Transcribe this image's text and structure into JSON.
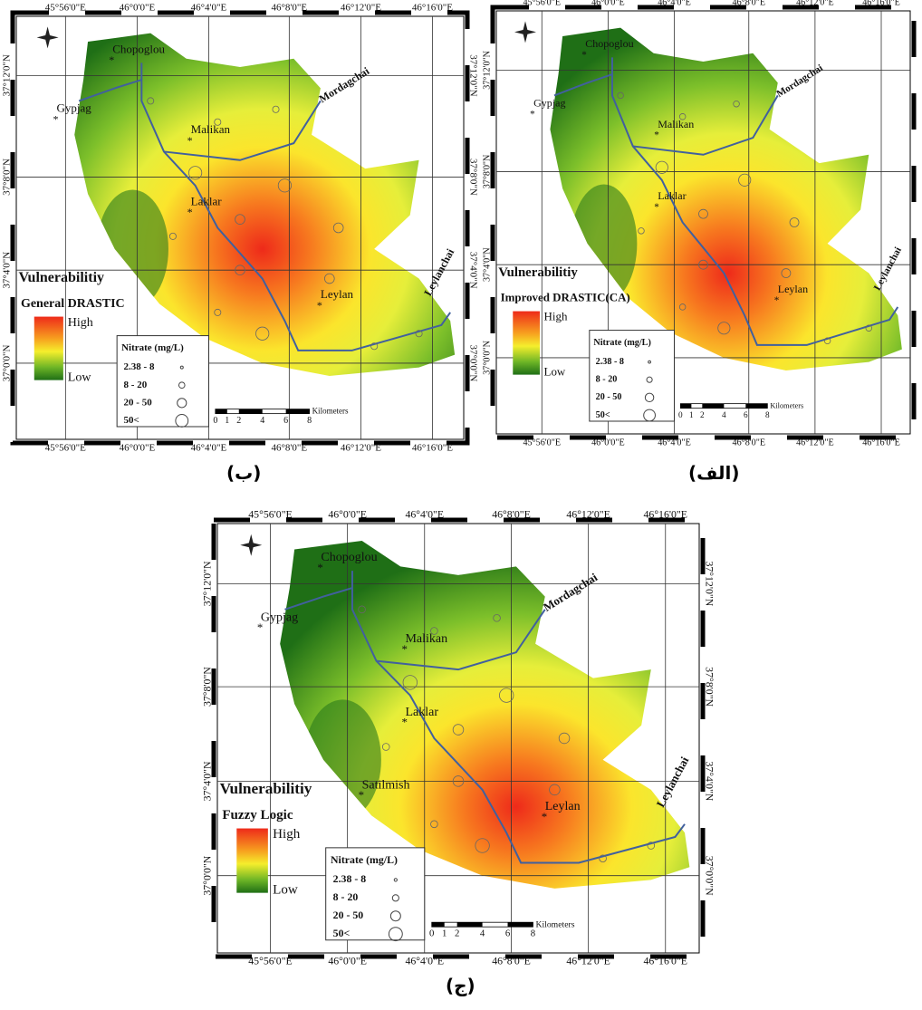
{
  "panels": [
    {
      "caption": "(ب)",
      "legend_title": "Vulnerabilitiy",
      "method": "General DRASTIC",
      "high": "High",
      "low": "Low",
      "nitrate_title": "Nitrate (mg/L)",
      "nitrate_classes": [
        "2.38 - 8",
        "8 - 20",
        "20 - 50",
        "50<"
      ],
      "scale_labels": [
        "0",
        "1",
        "2",
        "4",
        "6",
        "8"
      ],
      "scale_unit": "Kilometers",
      "lon_top": [
        "45°56'0\"E",
        "46°0'0\"E",
        "46°4'0\"E",
        "46°8'0\"E",
        "46°12'0\"E",
        "46°16'0\"E"
      ],
      "lon_bottom": [
        "45°56'0\"E",
        "46°0'0\"E",
        "46°4'0\"E",
        "46°8'0\"E",
        "46°12'0\"E",
        "46°16'0\"E"
      ],
      "lat_left": [
        "37°12'0\"N",
        "37°8'0\"N",
        "37°4'0\"N",
        "37°0'0\"N"
      ],
      "lat_right": [
        "37°12'0\"N",
        "37°8'0\"N",
        "37°4'0\"N",
        "37°0'0\"N"
      ],
      "places": [
        "Chopoglou",
        "Gypjag",
        "Malikan",
        "Laklar",
        "Leylan"
      ],
      "rivers": [
        "Mordagchai",
        "Leylanchai"
      ]
    },
    {
      "caption": "(الف)",
      "legend_title": "Vulnerabilitiy",
      "method": "Improved DRASTIC(CA)",
      "high": "High",
      "low": "Low",
      "nitrate_title": "Nitrate (mg/L)",
      "nitrate_classes": [
        "2.38 - 8",
        "8 - 20",
        "20 - 50",
        "50<"
      ],
      "scale_labels": [
        "0",
        "1",
        "2",
        "4",
        "6",
        "8"
      ],
      "scale_unit": "Kilometers",
      "lon_top": [
        "45°56'0\"E",
        "46°0'0\"E",
        "46°4'0\"E",
        "46°8'0\"E",
        "46°12'0\"E",
        "46°16'0\"E"
      ],
      "lon_bottom": [
        "45°56'0\"E",
        "46°0'0\"E",
        "46°4'0\"E",
        "46°8'0\"E",
        "46°12'0\"E",
        "46°16'0\"E"
      ],
      "lat_left": [
        "37°12'0\"N",
        "37°8'0\"N",
        "37°4'0\"N",
        "37°0'0\"N"
      ],
      "lat_right": [],
      "places": [
        "Chopoglou",
        "Gypjag",
        "Malikan",
        "Laklar",
        "Leylan"
      ],
      "rivers": [
        "Mordagchai",
        "Leylanchai"
      ]
    },
    {
      "caption": "(ج)",
      "legend_title": "Vulnerabilitiy",
      "method": "Fuzzy Logic",
      "high": "High",
      "low": "Low",
      "nitrate_title": "Nitrate (mg/L)",
      "nitrate_classes": [
        "2.38 - 8",
        "8 - 20",
        "20 - 50",
        "50<"
      ],
      "scale_labels": [
        "0",
        "1",
        "2",
        "4",
        "6",
        "8"
      ],
      "scale_unit": "Kilometers",
      "lon_top": [
        "45°56'0\"E",
        "46°0'0\"E",
        "46°4'0\"E",
        "46°8'0\"E",
        "46°12'0\"E",
        "46°16'0\"E"
      ],
      "lon_bottom": [
        "45°56'0\"E",
        "46°0'0\"E",
        "46°4'0\"E",
        "46°8'0\"E",
        "46°12'0\"E",
        "46°16'0\"E"
      ],
      "lat_left": [
        "37°12'0\"N",
        "37°8'0\"N",
        "37°4'0\"N",
        "37°0'0\"N"
      ],
      "lat_right": [
        "37°12'0\"N",
        "37°8'0\"N",
        "37°4'0\"N",
        "37°0'0\"N"
      ],
      "places": [
        "Chopoglou",
        "Gypjag",
        "Malikan",
        "Laklar",
        "Satilmish",
        "Leylan"
      ],
      "rivers": [
        "Mordagchai",
        "Leylanchai"
      ]
    }
  ]
}
